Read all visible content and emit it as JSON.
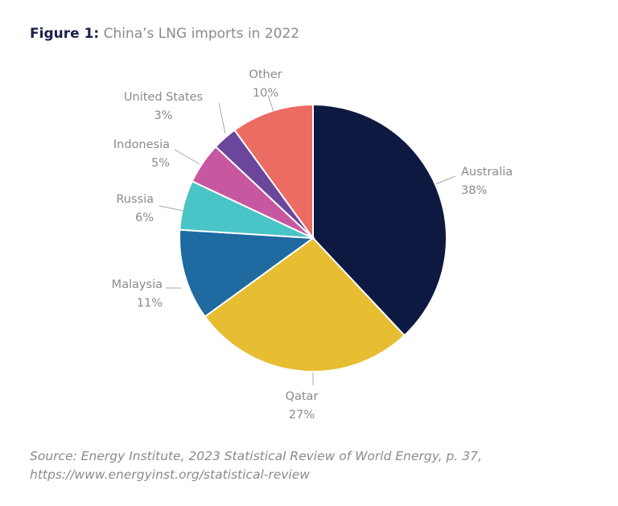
{
  "title": {
    "prefix": "Figure 1:",
    "text": "China’s LNG imports in 2022"
  },
  "chart_data": {
    "type": "pie",
    "title": "China’s LNG imports in 2022",
    "start": "top",
    "direction": "clockwise",
    "slices": [
      {
        "label": "Australia",
        "value": 38,
        "value_label": "38%",
        "color": "#0d1940"
      },
      {
        "label": "Qatar",
        "value": 27,
        "value_label": "27%",
        "color": "#e7bd32"
      },
      {
        "label": "Malaysia",
        "value": 11,
        "value_label": "11%",
        "color": "#1e6aa1"
      },
      {
        "label": "Russia",
        "value": 6,
        "value_label": "6%",
        "color": "#49c4c7"
      },
      {
        "label": "Indonesia",
        "value": 5,
        "value_label": "5%",
        "color": "#c7579f"
      },
      {
        "label": "United States",
        "value": 3,
        "value_label": "3%",
        "color": "#6b469b"
      },
      {
        "label": "Other",
        "value": 10,
        "value_label": "10%",
        "color": "#ec6b62"
      }
    ]
  },
  "source": {
    "line1": "Source: Energy Institute, 2023 Statistical Review of World Energy, p. 37,",
    "line2": "https://www.energyinst.org/statistical-review"
  }
}
